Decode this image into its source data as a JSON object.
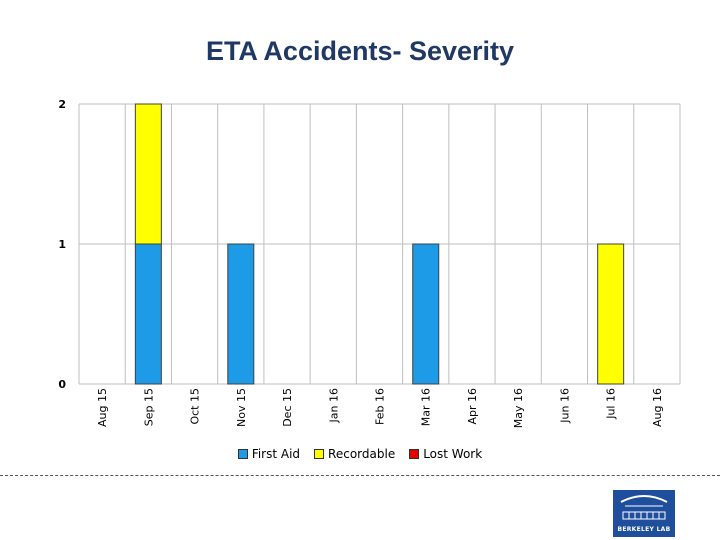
{
  "chart_data": {
    "type": "bar",
    "stacked": true,
    "title": "ETA Accidents-  Severity",
    "categories": [
      "Aug 15",
      "Sep 15",
      "Oct 15",
      "Nov 15",
      "Dec 15",
      "Jan 16",
      "Feb 16",
      "Mar 16",
      "Apr 16",
      "May 16",
      "Jun 16",
      "Jul 16",
      "Aug 16"
    ],
    "series": [
      {
        "name": "First Aid",
        "color": "#1e9be6",
        "values": [
          0,
          1,
          0,
          1,
          0,
          0,
          0,
          1,
          0,
          0,
          0,
          0,
          0
        ]
      },
      {
        "name": "Recordable",
        "color": "#ffff00",
        "values": [
          0,
          1,
          0,
          0,
          0,
          0,
          0,
          0,
          0,
          0,
          0,
          1,
          0
        ]
      },
      {
        "name": "Lost Work",
        "color": "#e00000",
        "values": [
          0,
          0,
          0,
          0,
          0,
          0,
          0,
          0,
          0,
          0,
          0,
          0,
          0
        ]
      }
    ],
    "ylim": [
      0,
      2
    ],
    "yticks": [
      "0",
      "1",
      "2"
    ],
    "xlabel": "",
    "ylabel": "",
    "legend": "bottom"
  },
  "logo": {
    "text": "BERKELEY LAB"
  }
}
